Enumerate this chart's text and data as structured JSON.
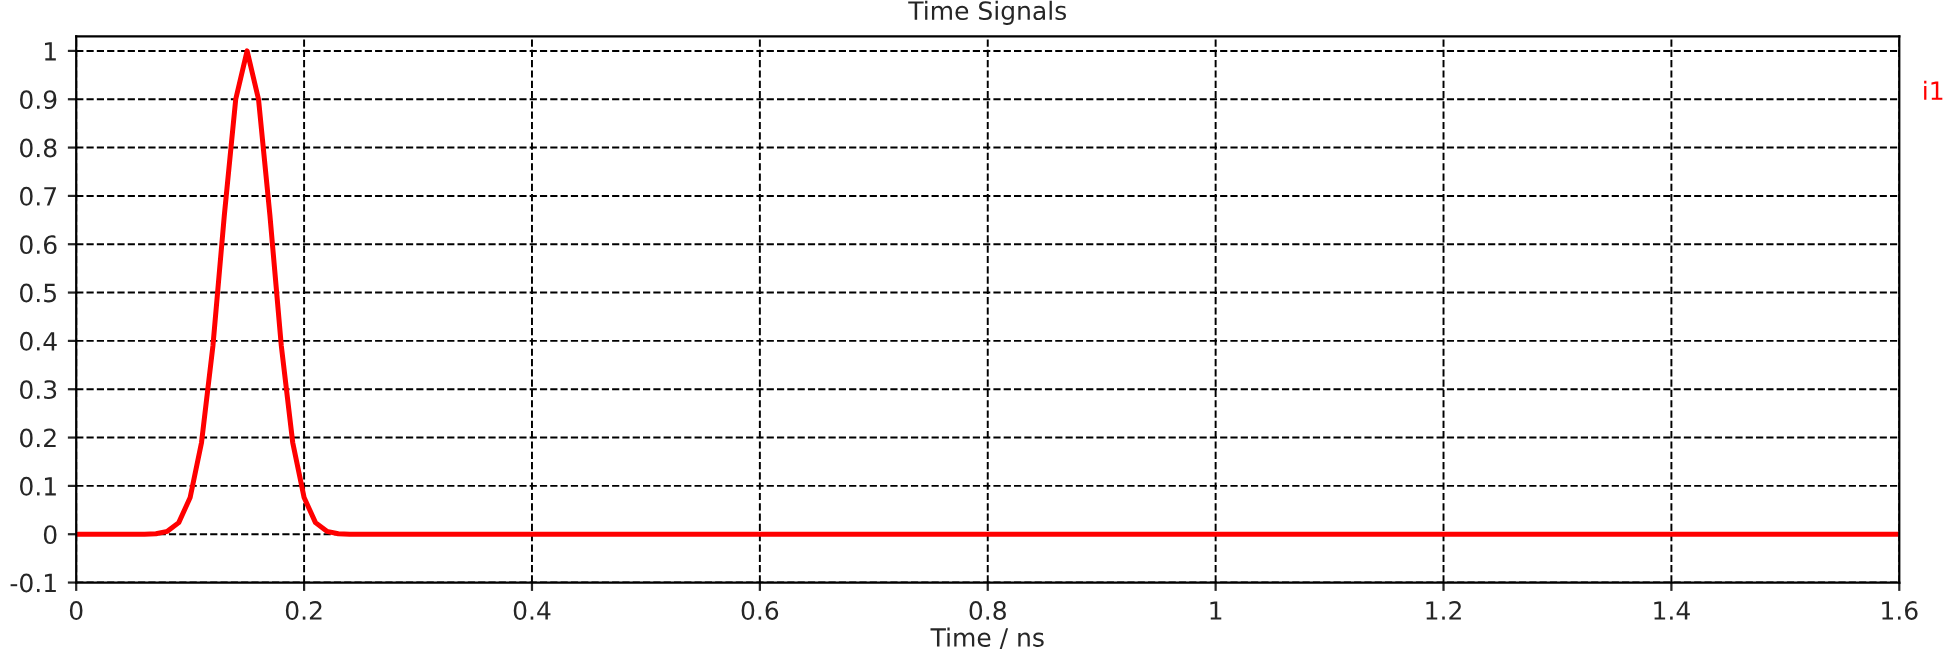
{
  "chart_data": {
    "type": "line",
    "title": "Time Signals",
    "xlabel": "Time / ns",
    "x": [
      0,
      0.05,
      0.06,
      0.07,
      0.08,
      0.09,
      0.1,
      0.11,
      0.12,
      0.13,
      0.14,
      0.15,
      0.16,
      0.17,
      0.18,
      0.19,
      0.2,
      0.21,
      0.22,
      0.23,
      0.24,
      0.25,
      0.3,
      1.6
    ],
    "series": [
      {
        "name": "i1",
        "color": "#ff0000",
        "values": [
          0,
          0,
          0,
          0.001,
          0.006,
          0.024,
          0.076,
          0.19,
          0.39,
          0.66,
          0.9,
          1,
          0.9,
          0.66,
          0.39,
          0.19,
          0.076,
          0.024,
          0.006,
          0.001,
          0,
          0,
          0,
          0
        ]
      }
    ],
    "xlim": [
      0,
      1.6
    ],
    "xticks": [
      0,
      0.2,
      0.4,
      0.6,
      0.8,
      1,
      1.2,
      1.4,
      1.6
    ],
    "ylim": [
      -0.1,
      1.03
    ],
    "yticks": [
      -0.1,
      0,
      0.1,
      0.2,
      0.3,
      0.4,
      0.5,
      0.6,
      0.7,
      0.8,
      0.9,
      1
    ],
    "grid": true,
    "legend": "right",
    "line_style": "solid",
    "marker": "none"
  }
}
